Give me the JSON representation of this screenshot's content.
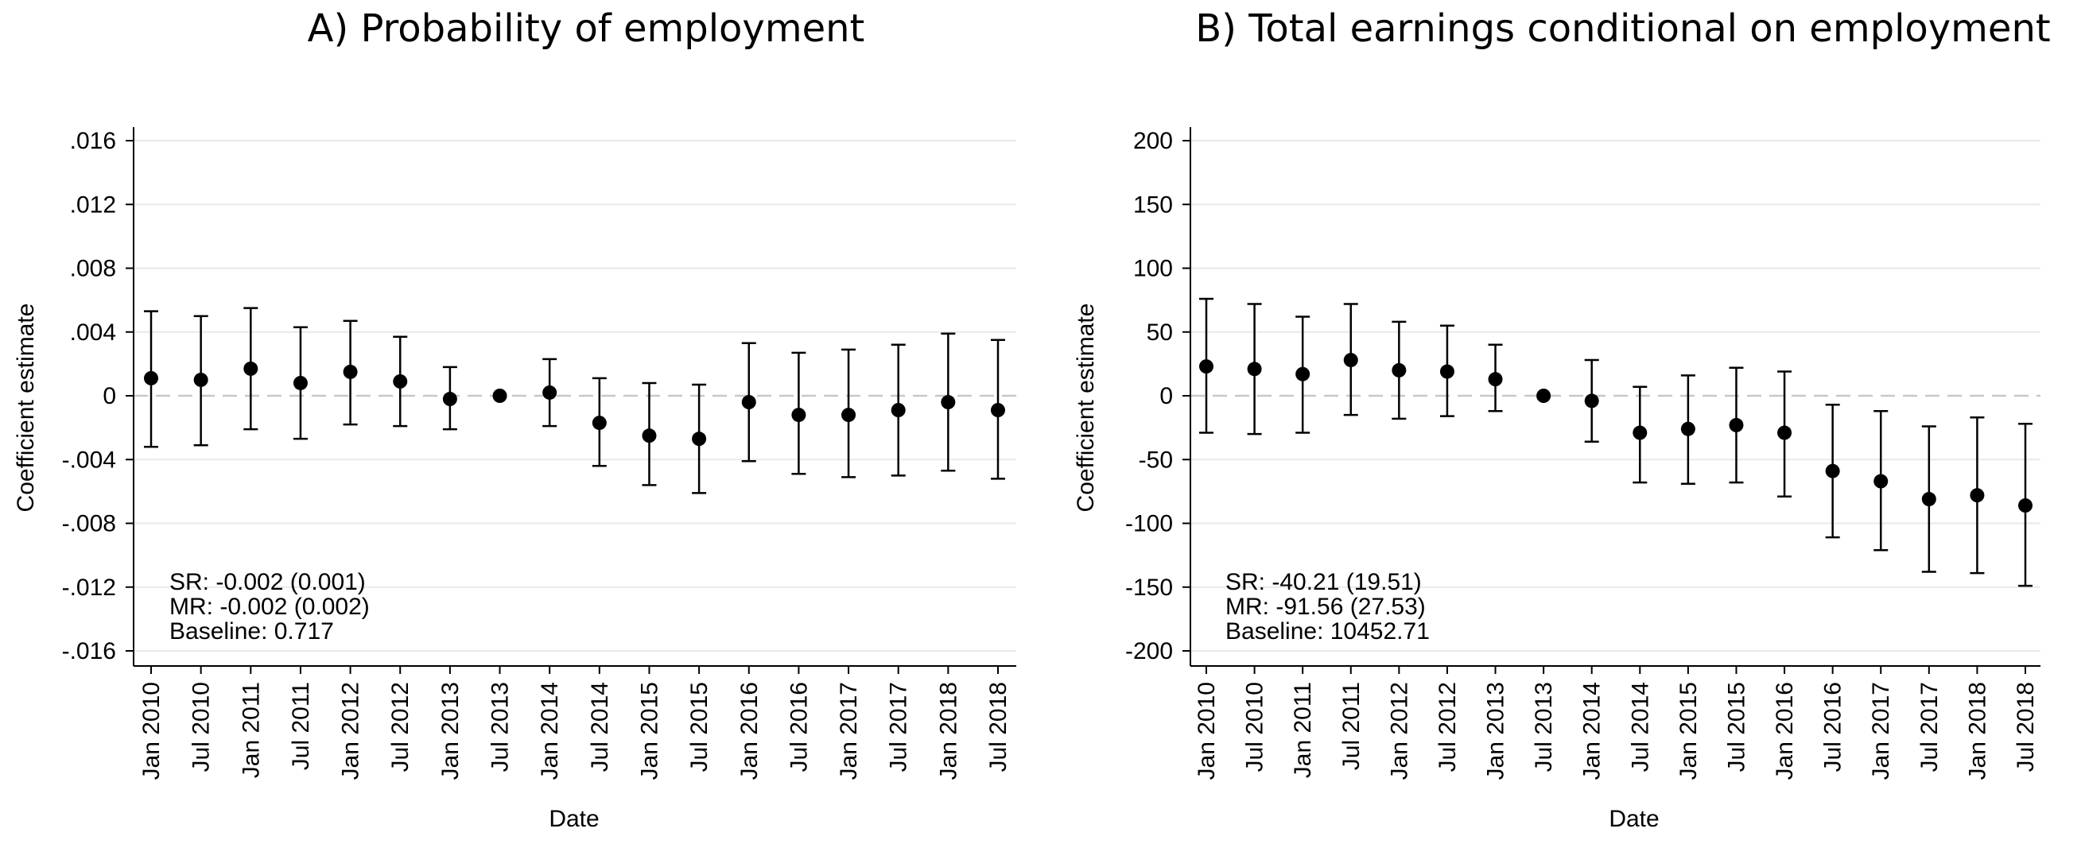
{
  "chart_data": [
    {
      "type": "scatter",
      "subtype": "coefficient plot with 95% confidence intervals",
      "title": "A) Probability of employment",
      "xlabel": "Date",
      "ylabel": "Coefficient estimate",
      "categories": [
        "Jan 2010",
        "Jul 2010",
        "Jan 2011",
        "Jul 2011",
        "Jan 2012",
        "Jul 2012",
        "Jan 2013",
        "Jul 2013",
        "Jan 2014",
        "Jul 2014",
        "Jan 2015",
        "Jul 2015",
        "Jan 2016",
        "Jul 2016",
        "Jan 2017",
        "Jul 2017",
        "Jan 2018",
        "Jul 2018"
      ],
      "values": [
        0.0011,
        0.001,
        0.0017,
        0.0008,
        0.0015,
        0.0009,
        -0.0002,
        0,
        0.0002,
        -0.0017,
        -0.0025,
        -0.0027,
        -0.0004,
        -0.0012,
        -0.0012,
        -0.0009,
        -0.0004,
        -0.0009
      ],
      "ci_lower": [
        -0.0032,
        -0.0031,
        -0.0021,
        -0.0027,
        -0.0018,
        -0.0019,
        -0.0021,
        0,
        -0.0019,
        -0.0044,
        -0.0056,
        -0.0061,
        -0.0041,
        -0.0049,
        -0.0051,
        -0.005,
        -0.0047,
        -0.0052
      ],
      "ci_upper": [
        0.0053,
        0.005,
        0.0055,
        0.0043,
        0.0047,
        0.0037,
        0.0018,
        0,
        0.0023,
        0.0011,
        0.0008,
        0.0007,
        0.0033,
        0.0027,
        0.0029,
        0.0032,
        0.0039,
        0.0035
      ],
      "yticks": [
        0.016,
        0.012,
        0.008,
        0.004,
        0,
        -0.004,
        -0.008,
        -0.012,
        -0.016
      ],
      "ytick_labels": [
        ".016",
        ".012",
        ".008",
        ".004",
        "0",
        "-.004",
        "-.008",
        "-.012",
        "-.016"
      ],
      "ylim": [
        -0.017,
        0.017
      ],
      "reference_line": 0,
      "grid": true,
      "annotations": [
        "SR: -0.002 (0.001)",
        "MR: -0.002 (0.002)",
        "Baseline: 0.717"
      ]
    },
    {
      "type": "scatter",
      "subtype": "coefficient plot with 95% confidence intervals",
      "title": "B) Total earnings conditional on employment",
      "xlabel": "Date",
      "ylabel": "Coefficient estimate",
      "categories": [
        "Jan 2010",
        "Jul 2010",
        "Jan 2011",
        "Jul 2011",
        "Jan 2012",
        "Jul 2012",
        "Jan 2013",
        "Jul 2013",
        "Jan 2014",
        "Jul 2014",
        "Jan 2015",
        "Jul 2015",
        "Jan 2016",
        "Jul 2016",
        "Jan 2017",
        "Jul 2017",
        "Jan 2018",
        "Jul 2018"
      ],
      "values": [
        23,
        21,
        17,
        28,
        20,
        19,
        13,
        0,
        -4,
        -29,
        -26,
        -23,
        -29,
        -59,
        -67,
        -81,
        -78,
        -86
      ],
      "ci_lower": [
        -29,
        -30,
        -29,
        -15,
        -18,
        -16,
        -12,
        0,
        -36,
        -68,
        -69,
        -68,
        -79,
        -111,
        -121,
        -138,
        -139,
        -149
      ],
      "ci_upper": [
        76,
        72,
        62,
        72,
        58,
        55,
        40,
        0,
        28,
        7,
        16,
        22,
        19,
        -7,
        -12,
        -24,
        -17,
        -22
      ],
      "yticks": [
        200,
        150,
        100,
        50,
        0,
        -50,
        -100,
        -150,
        -200
      ],
      "ytick_labels": [
        "200",
        "150",
        "100",
        "50",
        "0",
        "-50",
        "-100",
        "-150",
        "-200"
      ],
      "ylim": [
        -212,
        212
      ],
      "reference_line": 0,
      "grid": true,
      "annotations": [
        "SR: -40.21 (19.51)",
        "MR: -91.56 (27.53)",
        "Baseline: 10452.71"
      ]
    }
  ]
}
